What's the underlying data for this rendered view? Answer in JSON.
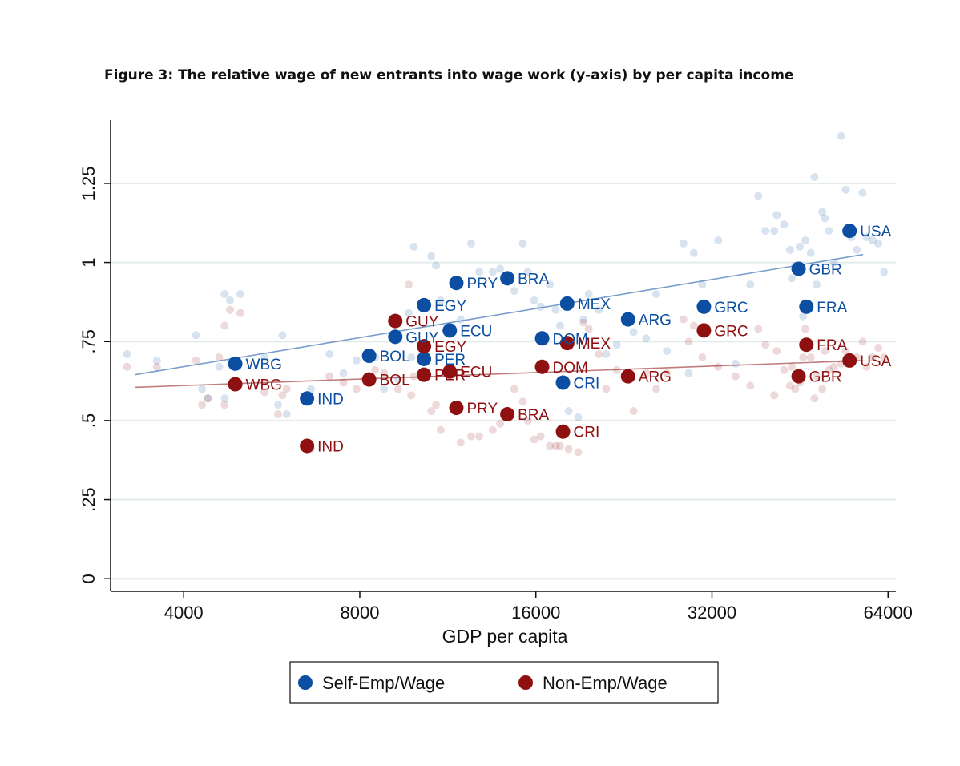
{
  "chart_data": {
    "type": "scatter",
    "title": "Figure 3: The relative wage of new entrants into wage work (y-axis) by per capita income",
    "xlabel": "GDP per capita",
    "ylabel": "",
    "x_scale": "log",
    "xlim": [
      3000,
      66000
    ],
    "ylim": [
      -0.04,
      1.45
    ],
    "x_ticks": [
      4000,
      8000,
      16000,
      32000,
      64000
    ],
    "x_tick_labels": [
      "4000",
      "8000",
      "16000",
      "32000",
      "64000"
    ],
    "y_ticks": [
      0,
      0.25,
      0.5,
      0.75,
      1,
      1.25
    ],
    "y_tick_labels": [
      "0",
      ".25",
      ".5",
      ".75",
      "1",
      "1.25"
    ],
    "grid": true,
    "legend_position": "bottom",
    "colors": {
      "self_emp": "#0b4ea2",
      "non_emp": "#8e1010"
    },
    "series": [
      {
        "name": "Self-Emp/Wage",
        "color": "#0b4ea2",
        "fit_line": {
          "x": [
            3300,
            58000
          ],
          "y": [
            0.645,
            1.025
          ]
        },
        "points": [
          {
            "label": "WBG",
            "x": 4900,
            "y": 0.68
          },
          {
            "label": "IND",
            "x": 6500,
            "y": 0.57
          },
          {
            "label": "BOL",
            "x": 8300,
            "y": 0.705
          },
          {
            "label": "GUY",
            "x": 9200,
            "y": 0.765
          },
          {
            "label": "PER",
            "x": 10300,
            "y": 0.695
          },
          {
            "label": "EGY",
            "x": 10300,
            "y": 0.865
          },
          {
            "label": "ECU",
            "x": 11400,
            "y": 0.785
          },
          {
            "label": "PRY",
            "x": 11700,
            "y": 0.935
          },
          {
            "label": "BRA",
            "x": 14300,
            "y": 0.95
          },
          {
            "label": "DOM",
            "x": 16400,
            "y": 0.76
          },
          {
            "label": "CRI",
            "x": 17800,
            "y": 0.62
          },
          {
            "label": "MEX",
            "x": 18100,
            "y": 0.87
          },
          {
            "label": "ARG",
            "x": 23000,
            "y": 0.82
          },
          {
            "label": "GRC",
            "x": 31000,
            "y": 0.86
          },
          {
            "label": "GBR",
            "x": 45000,
            "y": 0.98
          },
          {
            "label": "FRA",
            "x": 46400,
            "y": 0.86
          },
          {
            "label": "USA",
            "x": 55000,
            "y": 1.1
          }
        ]
      },
      {
        "name": "Non-Emp/Wage",
        "color": "#8e1010",
        "fit_line": {
          "x": [
            3300,
            58000
          ],
          "y": [
            0.605,
            0.69
          ]
        },
        "points": [
          {
            "label": "WBG",
            "x": 4900,
            "y": 0.615
          },
          {
            "label": "IND",
            "x": 6500,
            "y": 0.42
          },
          {
            "label": "BOL",
            "x": 8300,
            "y": 0.63
          },
          {
            "label": "GUY",
            "x": 9200,
            "y": 0.815
          },
          {
            "label": "PER",
            "x": 10300,
            "y": 0.645
          },
          {
            "label": "EGY",
            "x": 10300,
            "y": 0.735
          },
          {
            "label": "ECU",
            "x": 11400,
            "y": 0.655
          },
          {
            "label": "PRY",
            "x": 11700,
            "y": 0.54
          },
          {
            "label": "BRA",
            "x": 14300,
            "y": 0.52
          },
          {
            "label": "DOM",
            "x": 16400,
            "y": 0.67
          },
          {
            "label": "CRI",
            "x": 17800,
            "y": 0.465
          },
          {
            "label": "MEX",
            "x": 18100,
            "y": 0.745
          },
          {
            "label": "ARG",
            "x": 23000,
            "y": 0.64
          },
          {
            "label": "GRC",
            "x": 31000,
            "y": 0.785
          },
          {
            "label": "GBR",
            "x": 45000,
            "y": 0.64
          },
          {
            "label": "FRA",
            "x": 46400,
            "y": 0.74
          },
          {
            "label": "USA",
            "x": 55000,
            "y": 0.69
          }
        ]
      }
    ],
    "background_points": {
      "self_emp": [
        [
          3200,
          0.71
        ],
        [
          3600,
          0.69
        ],
        [
          4200,
          0.77
        ],
        [
          4300,
          0.6
        ],
        [
          4400,
          0.57
        ],
        [
          4700,
          0.57
        ],
        [
          4700,
          0.9
        ],
        [
          4800,
          0.88
        ],
        [
          5000,
          0.9
        ],
        [
          4600,
          0.67
        ],
        [
          5500,
          0.7
        ],
        [
          5800,
          0.55
        ],
        [
          5900,
          0.77
        ],
        [
          6000,
          0.52
        ],
        [
          6600,
          0.6
        ],
        [
          7100,
          0.71
        ],
        [
          7500,
          0.65
        ],
        [
          7900,
          0.69
        ],
        [
          8500,
          0.7
        ],
        [
          8800,
          0.6
        ],
        [
          9300,
          0.63
        ],
        [
          9700,
          0.84
        ],
        [
          9800,
          0.7
        ],
        [
          9900,
          1.05
        ],
        [
          10800,
          0.99
        ],
        [
          10600,
          1.02
        ],
        [
          11000,
          0.88
        ],
        [
          11900,
          0.82
        ],
        [
          12400,
          1.06
        ],
        [
          12800,
          0.97
        ],
        [
          13500,
          0.97
        ],
        [
          13900,
          0.98
        ],
        [
          14700,
          0.91
        ],
        [
          15200,
          1.06
        ],
        [
          15500,
          0.97
        ],
        [
          15900,
          0.88
        ],
        [
          16300,
          0.86
        ],
        [
          16900,
          0.93
        ],
        [
          17300,
          0.85
        ],
        [
          17600,
          0.8
        ],
        [
          18200,
          0.53
        ],
        [
          18900,
          0.51
        ],
        [
          19300,
          0.82
        ],
        [
          19700,
          0.9
        ],
        [
          20500,
          0.85
        ],
        [
          21100,
          0.71
        ],
        [
          22000,
          0.74
        ],
        [
          23500,
          0.78
        ],
        [
          24700,
          0.76
        ],
        [
          25700,
          0.9
        ],
        [
          26800,
          0.72
        ],
        [
          28600,
          1.06
        ],
        [
          29200,
          0.65
        ],
        [
          29800,
          1.03
        ],
        [
          30800,
          0.93
        ],
        [
          32800,
          1.07
        ],
        [
          35100,
          0.68
        ],
        [
          37200,
          0.93
        ],
        [
          38400,
          1.21
        ],
        [
          39500,
          1.1
        ],
        [
          40900,
          1.1
        ],
        [
          41300,
          1.15
        ],
        [
          42500,
          1.12
        ],
        [
          43500,
          1.04
        ],
        [
          44400,
          0.99
        ],
        [
          45200,
          1.05
        ],
        [
          46200,
          1.07
        ],
        [
          47200,
          1.03
        ],
        [
          47900,
          1.27
        ],
        [
          48300,
          0.93
        ],
        [
          49400,
          1.16
        ],
        [
          49900,
          1.14
        ],
        [
          50700,
          1.1
        ],
        [
          51700,
          1.0
        ],
        [
          53200,
          1.4
        ],
        [
          54200,
          1.23
        ],
        [
          55400,
          1.08
        ],
        [
          56600,
          1.04
        ],
        [
          57900,
          1.22
        ],
        [
          58800,
          1.08
        ],
        [
          60200,
          1.07
        ],
        [
          61600,
          1.06
        ],
        [
          63000,
          0.97
        ],
        [
          43800,
          0.95
        ],
        [
          45800,
          0.83
        ]
      ],
      "non_emp": [
        [
          3200,
          0.67
        ],
        [
          3600,
          0.67
        ],
        [
          4200,
          0.69
        ],
        [
          4300,
          0.55
        ],
        [
          4400,
          0.57
        ],
        [
          4700,
          0.55
        ],
        [
          4700,
          0.8
        ],
        [
          4800,
          0.85
        ],
        [
          5000,
          0.84
        ],
        [
          4600,
          0.7
        ],
        [
          5500,
          0.59
        ],
        [
          5800,
          0.52
        ],
        [
          5900,
          0.58
        ],
        [
          6000,
          0.6
        ],
        [
          6600,
          0.41
        ],
        [
          7100,
          0.64
        ],
        [
          7500,
          0.62
        ],
        [
          7900,
          0.6
        ],
        [
          8500,
          0.66
        ],
        [
          8800,
          0.65
        ],
        [
          9300,
          0.6
        ],
        [
          9700,
          0.93
        ],
        [
          9800,
          0.58
        ],
        [
          9900,
          0.64
        ],
        [
          10800,
          0.55
        ],
        [
          10600,
          0.53
        ],
        [
          11000,
          0.47
        ],
        [
          11900,
          0.43
        ],
        [
          12400,
          0.45
        ],
        [
          12800,
          0.45
        ],
        [
          13500,
          0.47
        ],
        [
          13900,
          0.49
        ],
        [
          14700,
          0.6
        ],
        [
          15200,
          0.56
        ],
        [
          15500,
          0.5
        ],
        [
          15900,
          0.44
        ],
        [
          16300,
          0.45
        ],
        [
          16900,
          0.42
        ],
        [
          17300,
          0.42
        ],
        [
          17600,
          0.42
        ],
        [
          18200,
          0.41
        ],
        [
          18900,
          0.4
        ],
        [
          19300,
          0.81
        ],
        [
          19700,
          0.79
        ],
        [
          20500,
          0.71
        ],
        [
          21100,
          0.6
        ],
        [
          22000,
          0.66
        ],
        [
          23500,
          0.53
        ],
        [
          24700,
          0.65
        ],
        [
          25700,
          0.6
        ],
        [
          26800,
          0.65
        ],
        [
          28600,
          0.82
        ],
        [
          29200,
          0.75
        ],
        [
          29800,
          0.8
        ],
        [
          30800,
          0.7
        ],
        [
          32800,
          0.67
        ],
        [
          35100,
          0.64
        ],
        [
          37200,
          0.61
        ],
        [
          38400,
          0.79
        ],
        [
          39500,
          0.74
        ],
        [
          40900,
          0.58
        ],
        [
          41300,
          0.72
        ],
        [
          42500,
          0.66
        ],
        [
          43500,
          0.61
        ],
        [
          44400,
          0.6
        ],
        [
          45200,
          0.62
        ],
        [
          46200,
          0.79
        ],
        [
          47200,
          0.7
        ],
        [
          47900,
          0.57
        ],
        [
          48300,
          0.64
        ],
        [
          49400,
          0.6
        ],
        [
          49900,
          0.72
        ],
        [
          50700,
          0.66
        ],
        [
          51700,
          0.67
        ],
        [
          53200,
          0.68
        ],
        [
          54200,
          0.72
        ],
        [
          55400,
          0.69
        ],
        [
          56600,
          0.7
        ],
        [
          57900,
          0.75
        ],
        [
          58800,
          0.67
        ],
        [
          60200,
          0.7
        ],
        [
          61600,
          0.73
        ],
        [
          63000,
          0.7
        ],
        [
          43800,
          0.67
        ],
        [
          45800,
          0.7
        ]
      ]
    }
  }
}
